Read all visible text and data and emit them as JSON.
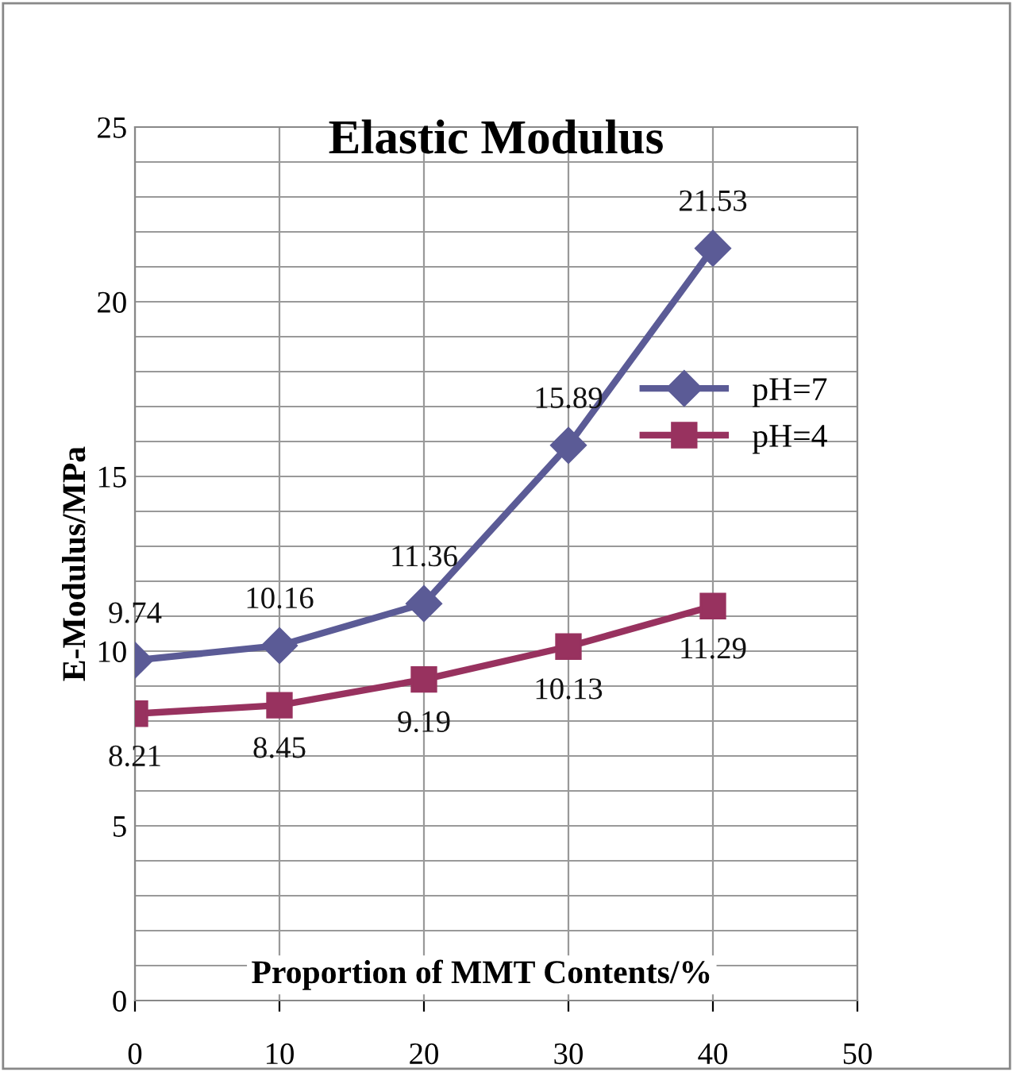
{
  "chart_data": {
    "type": "line",
    "title": "Elastic Modulus",
    "xlabel": "Proportion of MMT Contents/%",
    "ylabel": "E-Modulus/MPa",
    "x": [
      0,
      10,
      20,
      30,
      40
    ],
    "series": [
      {
        "name": "pH=7",
        "color": "#5b5b96",
        "values": [
          9.74,
          10.16,
          11.36,
          15.89,
          21.53
        ],
        "marker": "diamond"
      },
      {
        "name": "pH=4",
        "color": "#98325f",
        "values": [
          8.21,
          8.45,
          9.19,
          10.13,
          11.29
        ],
        "marker": "square"
      }
    ],
    "xlim": [
      0,
      50
    ],
    "xticks": [
      0,
      10,
      20,
      30,
      40,
      50
    ],
    "ylim": [
      0,
      25
    ],
    "yticks": [
      0,
      {
        "value": 1,
        "label": null
      },
      {
        "value": 2,
        "label": null
      },
      {
        "value": 3,
        "label": null
      },
      {
        "value": 4,
        "label": null
      },
      5,
      {
        "value": 6,
        "label": null
      },
      {
        "value": 7,
        "label": null
      },
      {
        "value": 8,
        "label": null
      },
      {
        "value": 9,
        "label": null
      },
      10,
      {
        "value": 11,
        "label": null
      },
      {
        "value": 12,
        "label": null
      },
      {
        "value": 13,
        "label": null
      },
      {
        "value": 14,
        "label": null
      },
      15,
      {
        "value": 16,
        "label": null
      },
      {
        "value": 17,
        "label": null
      },
      {
        "value": 18,
        "label": null
      },
      {
        "value": 19,
        "label": null
      },
      20,
      {
        "value": 21,
        "label": null
      },
      {
        "value": 22,
        "label": null
      },
      {
        "value": 23,
        "label": null
      },
      {
        "value": 24,
        "label": null
      },
      25
    ],
    "grid": true,
    "legend": "right",
    "data_labels": true,
    "line_style": "solid"
  }
}
